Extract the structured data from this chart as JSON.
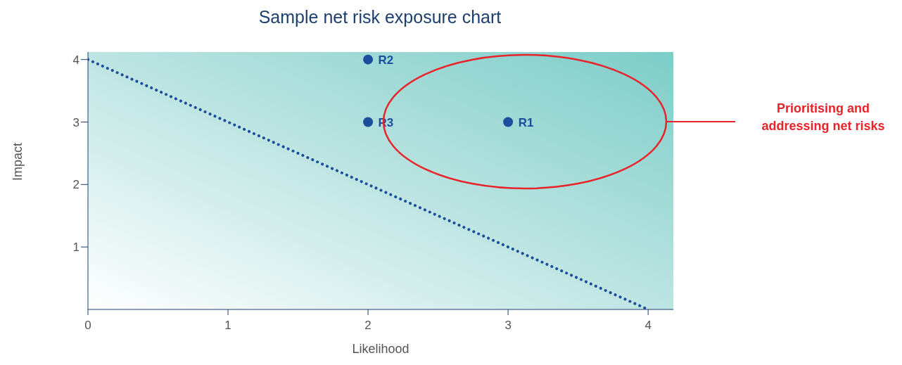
{
  "chart_data": {
    "type": "scatter",
    "title": "Sample net risk exposure chart",
    "xlabel": "Likelihood",
    "ylabel": "Impact",
    "xlim": [
      0,
      4.18
    ],
    "ylim": [
      0,
      4.12
    ],
    "xticks": [
      0,
      1,
      2,
      3,
      4
    ],
    "yticks": [
      1,
      2,
      3,
      4
    ],
    "annotations": [
      "Prioritising and addressing net risks"
    ],
    "series": [
      {
        "color": "#1b4f9e",
        "x": [
          3,
          2,
          2
        ],
        "values": [
          3,
          4,
          3
        ],
        "value_labels": [
          "R1",
          "R2",
          "R3"
        ],
        "marker": "circle"
      },
      {
        "type": "line",
        "color": "#1b4f9e",
        "x": [
          0,
          4
        ],
        "values": [
          4,
          0
        ],
        "line_style": "dotted",
        "marker": "none"
      }
    ]
  }
}
